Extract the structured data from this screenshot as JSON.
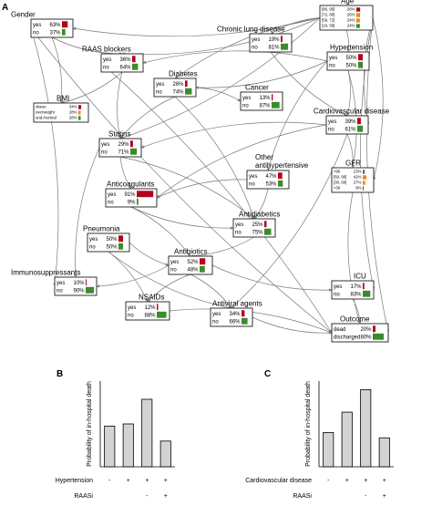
{
  "panels": {
    "a": "A",
    "b": "B",
    "c": "C"
  },
  "colors": {
    "red": "#b3001b",
    "green": "#3b8b2c",
    "orange": "#e88a1a",
    "bar_fill": "#d3d3d3",
    "edge": "#7a7a7a"
  },
  "network": {
    "nodes": {
      "gender": {
        "title": "Gender",
        "rows": [
          {
            "label": "yes",
            "value": "63%",
            "p": 0.63,
            "color": "red"
          },
          {
            "label": "no",
            "value": "37%",
            "p": 0.37,
            "color": "green"
          }
        ]
      },
      "age": {
        "title": "Age",
        "rows": [
          {
            "label": "[80, 95]",
            "value": "26%",
            "p": 0.26,
            "color": "red"
          },
          {
            "label": "[72, 80]",
            "value": "26%",
            "p": 0.26,
            "color": "orange"
          },
          {
            "label": "[59, 72]",
            "value": "24%",
            "p": 0.24,
            "color": "orange"
          },
          {
            "label": "[19, 59]",
            "value": "24%",
            "p": 0.24,
            "color": "green"
          }
        ]
      },
      "chronic_lung": {
        "title": "Chronic lung disease",
        "rows": [
          {
            "label": "yes",
            "value": "19%",
            "p": 0.19,
            "color": "red"
          },
          {
            "label": "no",
            "value": "81%",
            "p": 0.81,
            "color": "green"
          }
        ]
      },
      "raas": {
        "title": "RAAS blockers",
        "rows": [
          {
            "label": "yes",
            "value": "36%",
            "p": 0.36,
            "color": "red"
          },
          {
            "label": "no",
            "value": "64%",
            "p": 0.64,
            "color": "green"
          }
        ]
      },
      "hypertension": {
        "title": "Hypertension",
        "rows": [
          {
            "label": "yes",
            "value": "50%",
            "p": 0.5,
            "color": "red"
          },
          {
            "label": "no",
            "value": "50%",
            "p": 0.5,
            "color": "green"
          }
        ]
      },
      "diabetes": {
        "title": "Diabetes",
        "rows": [
          {
            "label": "yes",
            "value": "26%",
            "p": 0.26,
            "color": "red"
          },
          {
            "label": "no",
            "value": "74%",
            "p": 0.74,
            "color": "green"
          }
        ]
      },
      "bmi": {
        "title": "BMI",
        "rows": [
          {
            "label": "obese",
            "value": "34%",
            "p": 0.34,
            "color": "red"
          },
          {
            "label": "overweight",
            "value": "28%",
            "p": 0.28,
            "color": "orange"
          },
          {
            "label": "und./normal",
            "value": "28%",
            "p": 0.28,
            "color": "green"
          }
        ]
      },
      "cancer": {
        "title": "Cancer",
        "rows": [
          {
            "label": "yes",
            "value": "13%",
            "p": 0.13,
            "color": "red"
          },
          {
            "label": "no",
            "value": "87%",
            "p": 0.87,
            "color": "green"
          }
        ]
      },
      "cvd": {
        "title": "Cardiovascular disease",
        "rows": [
          {
            "label": "yes",
            "value": "39%",
            "p": 0.39,
            "color": "red"
          },
          {
            "label": "no",
            "value": "61%",
            "p": 0.61,
            "color": "green"
          }
        ]
      },
      "statins": {
        "title": "Statins",
        "rows": [
          {
            "label": "yes",
            "value": "29%",
            "p": 0.29,
            "color": "red"
          },
          {
            "label": "no",
            "value": "71%",
            "p": 0.71,
            "color": "green"
          }
        ]
      },
      "other_antihyp": {
        "title_lines": [
          "Other",
          "antihypertensive"
        ],
        "rows": [
          {
            "label": "yes",
            "value": "47%",
            "p": 0.47,
            "color": "red"
          },
          {
            "label": "no",
            "value": "53%",
            "p": 0.53,
            "color": "green"
          }
        ]
      },
      "gfr": {
        "title": "GFR",
        "rows": [
          {
            "label": ">90",
            "value": "23%",
            "p": 0.23,
            "color": "green"
          },
          {
            "label": "[60, 90]",
            "value": "42%",
            "p": 0.42,
            "color": "orange"
          },
          {
            "label": "[30, 60]",
            "value": "27%",
            "p": 0.27,
            "color": "orange"
          },
          {
            "label": "<30",
            "value": "9%",
            "p": 0.09,
            "color": "red"
          }
        ]
      },
      "anticoag": {
        "title": "Anticoagulants",
        "rows": [
          {
            "label": "yes",
            "value": "91%",
            "p": 0.91,
            "color": "red"
          },
          {
            "label": "no",
            "value": "9%",
            "p": 0.09,
            "color": "green"
          }
        ]
      },
      "antidiab": {
        "title": "Antidiabetics",
        "rows": [
          {
            "label": "yes",
            "value": "25%",
            "p": 0.25,
            "color": "red"
          },
          {
            "label": "no",
            "value": "75%",
            "p": 0.75,
            "color": "green"
          }
        ]
      },
      "pneumonia": {
        "title": "Pneumonia",
        "rows": [
          {
            "label": "yes",
            "value": "50%",
            "p": 0.5,
            "color": "red"
          },
          {
            "label": "no",
            "value": "50%",
            "p": 0.5,
            "color": "green"
          }
        ]
      },
      "antibiotics": {
        "title": "Antibiotics",
        "rows": [
          {
            "label": "yes",
            "value": "52%",
            "p": 0.52,
            "color": "red"
          },
          {
            "label": "no",
            "value": "48%",
            "p": 0.48,
            "color": "green"
          }
        ]
      },
      "immuno": {
        "title": "Immunosuppressants",
        "rows": [
          {
            "label": "yes",
            "value": "10%",
            "p": 0.1,
            "color": "red"
          },
          {
            "label": "no",
            "value": "90%",
            "p": 0.9,
            "color": "green"
          }
        ]
      },
      "icu": {
        "title": "ICU",
        "rows": [
          {
            "label": "yes",
            "value": "17%",
            "p": 0.17,
            "color": "red"
          },
          {
            "label": "no",
            "value": "83%",
            "p": 0.83,
            "color": "green"
          }
        ]
      },
      "nsaids": {
        "title": "NSAIDs",
        "rows": [
          {
            "label": "yes",
            "value": "12%",
            "p": 0.12,
            "color": "red"
          },
          {
            "label": "no",
            "value": "88%",
            "p": 0.88,
            "color": "green"
          }
        ]
      },
      "antiviral": {
        "title": "Antiviral agents",
        "rows": [
          {
            "label": "yes",
            "value": "34%",
            "p": 0.34,
            "color": "red"
          },
          {
            "label": "no",
            "value": "66%",
            "p": 0.66,
            "color": "green"
          }
        ]
      },
      "outcome": {
        "title": "Outcome",
        "rows": [
          {
            "label": "dead",
            "value": "20%",
            "p": 0.2,
            "color": "red"
          },
          {
            "label": "discharged",
            "value": "80%",
            "p": 0.8,
            "color": "green"
          }
        ]
      }
    }
  },
  "chart_data": [
    {
      "type": "bar",
      "panel": "B",
      "ylabel": "Probability of in-hospital death",
      "ylim": [
        0,
        0.4
      ],
      "values": [
        0.19,
        0.2,
        0.315,
        0.12
      ],
      "factor_rows": [
        {
          "label": "Hypertension",
          "signs": [
            "-",
            "+",
            "+",
            "+"
          ]
        },
        {
          "label": "RAASi",
          "signs": [
            "",
            "",
            "-",
            "+"
          ]
        }
      ]
    },
    {
      "type": "bar",
      "panel": "C",
      "ylabel": "Probability of in-hospital death",
      "ylim": [
        0,
        0.4
      ],
      "values": [
        0.16,
        0.255,
        0.36,
        0.135
      ],
      "factor_rows": [
        {
          "label": "Cardiovascular disease",
          "signs": [
            "-",
            "+",
            "+",
            "+"
          ]
        },
        {
          "label": "RAASi",
          "signs": [
            "",
            "",
            "-",
            "+"
          ]
        }
      ]
    }
  ]
}
